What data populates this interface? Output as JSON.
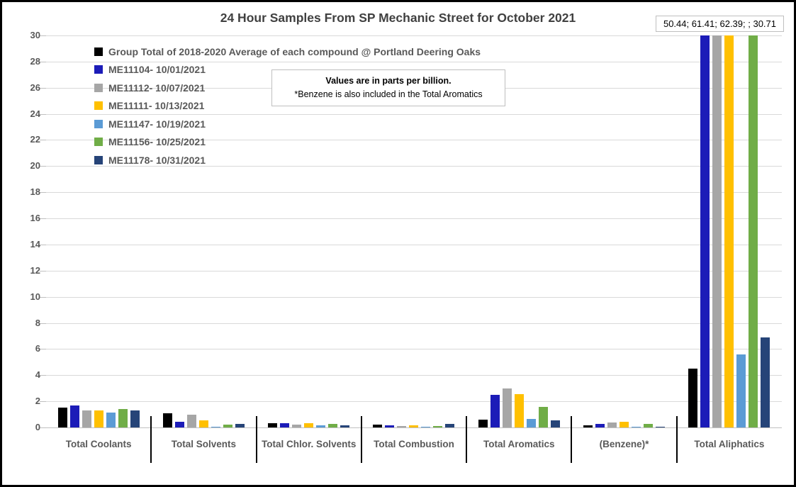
{
  "title": "24 Hour Samples From SP Mechanic Street for October 2021",
  "top_label": "50.44; 61.41; 62.39; ; 30.71",
  "note": {
    "line1": "Values are in parts per billion.",
    "line2": "*Benzene is also included in the Total Aromatics"
  },
  "colors": {
    "gridline": "#d9d9d9",
    "axis_text": "#595959",
    "divider": "#000000",
    "title_text": "#404040"
  },
  "chart_data": {
    "type": "bar",
    "title": "24 Hour Samples From SP Mechanic Street for October 2021",
    "units": "parts per billion",
    "categories": [
      "Total Coolants",
      "Total Solvents",
      "Total Chlor. Solvents",
      "Total Combustion",
      "Total Aromatics",
      "(Benzene)*",
      "Total Aliphatics"
    ],
    "series": [
      {
        "name": "Group Total of 2018-2020 Average of each compound @ Portland Deering Oaks",
        "color": "#000000",
        "values": [
          1.5,
          1.1,
          0.35,
          0.22,
          0.6,
          0.15,
          4.5
        ]
      },
      {
        "name": "ME11104- 10/01/2021",
        "color": "#1c1cb8",
        "values": [
          1.7,
          0.45,
          0.3,
          0.18,
          2.5,
          0.28,
          50.44
        ]
      },
      {
        "name": "ME11112- 10/07/2021",
        "color": "#a6a6a6",
        "values": [
          1.3,
          1.0,
          0.2,
          0.1,
          3.0,
          0.4,
          61.41
        ]
      },
      {
        "name": "ME11111- 10/13/2021",
        "color": "#ffc000",
        "values": [
          1.3,
          0.55,
          0.3,
          0.14,
          2.55,
          0.43,
          62.39
        ]
      },
      {
        "name": "ME11147- 10/19/2021",
        "color": "#5b9bd5",
        "values": [
          1.15,
          0.08,
          0.18,
          0.06,
          0.65,
          0.05,
          5.6
        ]
      },
      {
        "name": "ME11156- 10/25/2021",
        "color": "#70ad47",
        "values": [
          1.4,
          0.2,
          0.28,
          0.1,
          1.6,
          0.25,
          30.71
        ]
      },
      {
        "name": "ME11178- 10/31/2021",
        "color": "#264478",
        "values": [
          1.3,
          0.25,
          0.18,
          0.27,
          0.55,
          0.05,
          6.9
        ]
      }
    ],
    "ylim": [
      0,
      30
    ],
    "ytick_step": 2,
    "grid": true,
    "legend_position": "top-left",
    "offscale_label": "50.44; 61.41; 62.39; ; 30.71"
  }
}
